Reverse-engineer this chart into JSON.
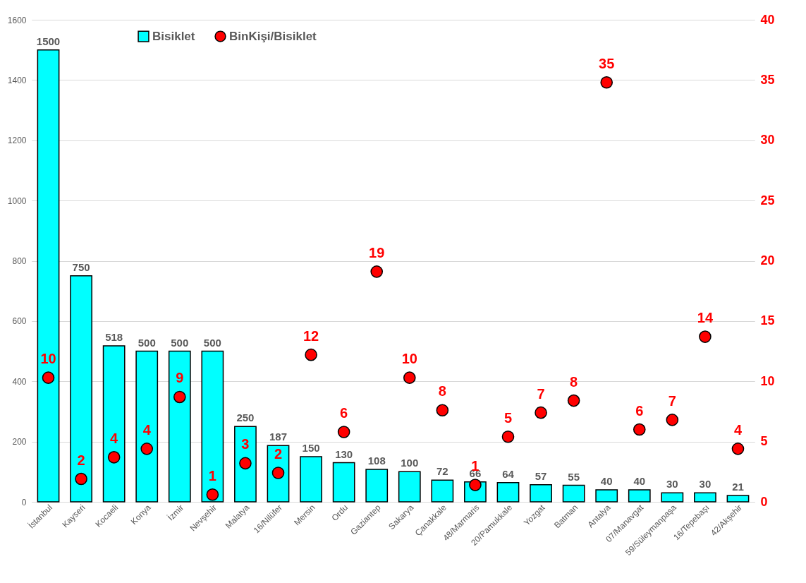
{
  "chart_data": {
    "type": "bar",
    "categories": [
      "İstanbul",
      "Kayseri",
      "Kocaeli",
      "Konya",
      "İzmir",
      "Nevşehir",
      "Malatya",
      "16/Nilüfer",
      "Mersin",
      "Ordu",
      "Gaziantep",
      "Sakarya",
      "Çanakkale",
      "48/Marmaris",
      "20/Pamukkale",
      "Yozgat",
      "Batman",
      "Antalya",
      "07/Manavgat",
      "59/Süleymanpaşa",
      "16/Tepebaşı",
      "42/Akşehir"
    ],
    "series": [
      {
        "name": "Bisiklet",
        "color": "#00ffff",
        "values": [
          1500,
          750,
          518,
          500,
          500,
          500,
          250,
          187,
          150,
          130,
          108,
          100,
          72,
          66,
          64,
          57,
          55,
          40,
          40,
          30,
          30,
          21
        ],
        "value_labels": [
          "1500",
          "750",
          "518",
          "500",
          "500",
          "500",
          "250",
          "187",
          "150",
          "130",
          "108",
          "100",
          "72",
          "66",
          "64",
          "57",
          "55",
          "40",
          "40",
          "30",
          "30",
          "21"
        ]
      },
      {
        "name": "BinKişi/Bisiklet",
        "type": "scatter",
        "axis": "y2",
        "color": "#ff0000",
        "values": [
          10.3,
          1.9,
          3.7,
          4.4,
          8.7,
          0.6,
          3.2,
          2.4,
          12.2,
          5.8,
          19.1,
          10.3,
          7.6,
          1.4,
          5.4,
          7.4,
          8.4,
          34.8,
          6.0,
          6.8,
          13.7,
          4.4
        ],
        "value_labels": [
          "10",
          "2",
          "4",
          "4",
          "9",
          "1",
          "3",
          "2",
          "12",
          "6",
          "19",
          "10",
          "8",
          "1",
          "5",
          "7",
          "8",
          "35",
          "6",
          "7",
          "14",
          "4"
        ]
      }
    ],
    "ylim": [
      0,
      1600
    ],
    "yticks": [
      0,
      200,
      400,
      600,
      800,
      1000,
      1200,
      1400,
      1600
    ],
    "y2lim": [
      0,
      40
    ],
    "y2ticks": [
      0,
      5,
      10,
      15,
      20,
      25,
      30,
      35,
      40
    ],
    "grid": "y",
    "legend": "top",
    "marker": "circle"
  }
}
